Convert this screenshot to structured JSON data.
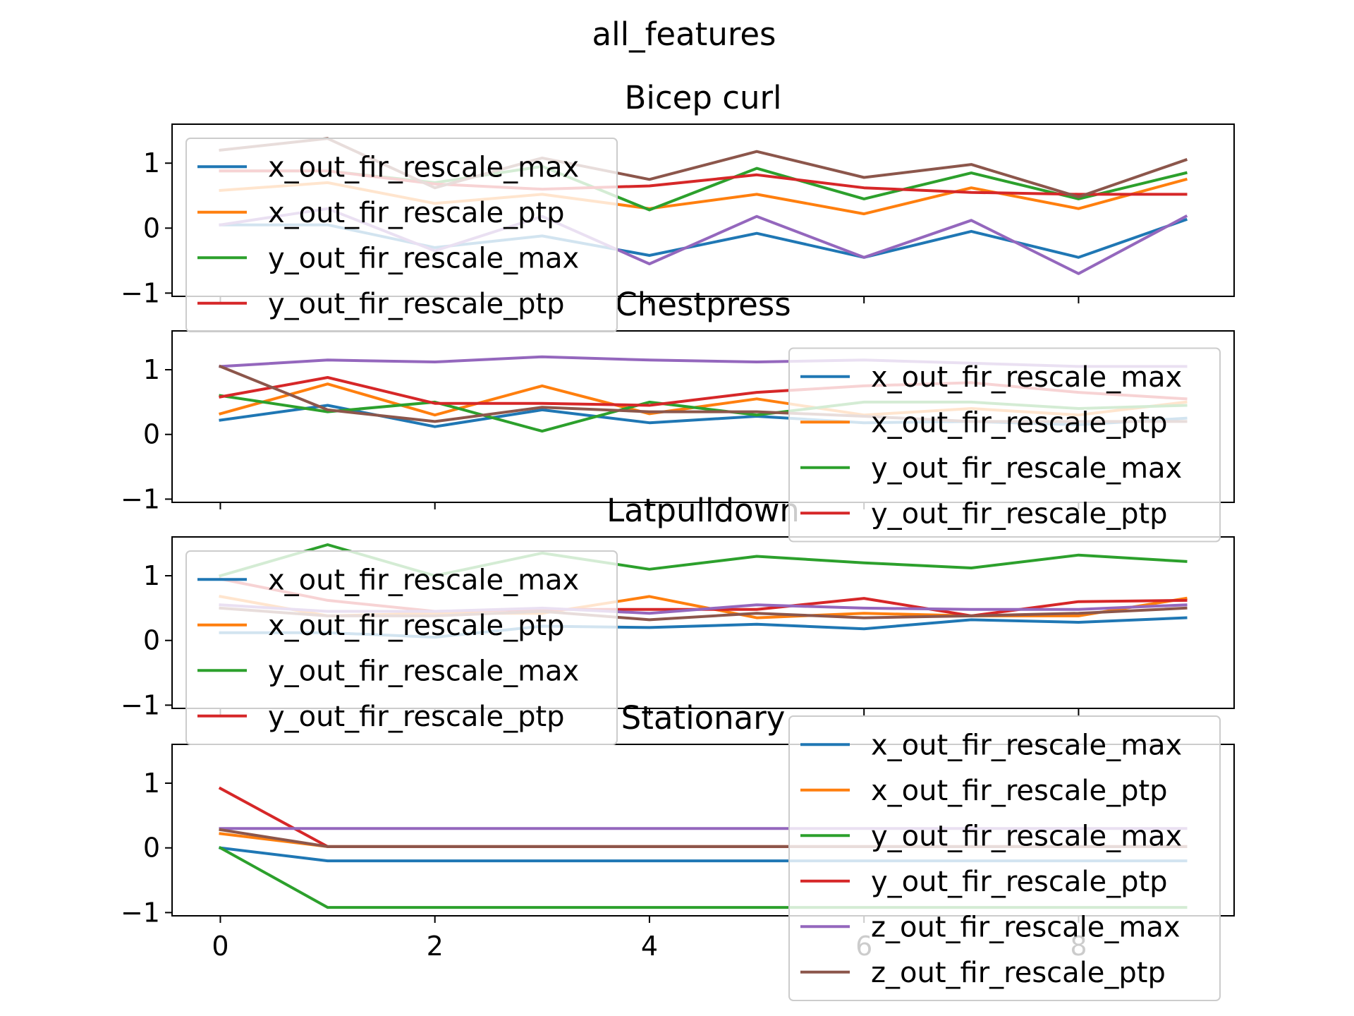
{
  "chart_data": {
    "type": "line",
    "suptitle": "all_features",
    "xticks": [
      0,
      2,
      4,
      6,
      8
    ],
    "xlim": [
      -0.45,
      9.45
    ],
    "ylim": [
      -1.05,
      1.6
    ],
    "yticks": [
      -1,
      0,
      1
    ],
    "x": [
      0,
      1,
      2,
      3,
      4,
      5,
      6,
      7,
      8,
      9
    ],
    "colors": {
      "x_out_fir_rescale_max": "#1f77b4",
      "x_out_fir_rescale_ptp": "#ff7f0e",
      "y_out_fir_rescale_max": "#2ca02c",
      "y_out_fir_rescale_ptp": "#d62728",
      "z_out_fir_rescale_max": "#9467bd",
      "z_out_fir_rescale_ptp": "#8c564b"
    },
    "panels": [
      {
        "title": "Bicep curl",
        "legend_loc": "upper-left",
        "legend_entries": [
          "x_out_fir_rescale_max",
          "x_out_fir_rescale_ptp",
          "y_out_fir_rescale_max",
          "y_out_fir_rescale_ptp"
        ],
        "series": [
          {
            "key": "x_out_fir_rescale_max",
            "values": [
              0.05,
              0.05,
              -0.3,
              -0.12,
              -0.42,
              -0.08,
              -0.45,
              -0.05,
              -0.45,
              0.13
            ]
          },
          {
            "key": "x_out_fir_rescale_ptp",
            "values": [
              0.58,
              0.7,
              0.38,
              0.52,
              0.3,
              0.52,
              0.22,
              0.62,
              0.3,
              0.75
            ]
          },
          {
            "key": "y_out_fir_rescale_max",
            "values": [
              0.88,
              0.88,
              0.7,
              0.95,
              0.28,
              0.92,
              0.45,
              0.85,
              0.45,
              0.85
            ]
          },
          {
            "key": "y_out_fir_rescale_ptp",
            "values": [
              0.88,
              0.88,
              0.68,
              0.6,
              0.65,
              0.82,
              0.62,
              0.55,
              0.52,
              0.52
            ]
          },
          {
            "key": "z_out_fir_rescale_max",
            "values": [
              0.05,
              0.3,
              -0.35,
              0.18,
              -0.55,
              0.18,
              -0.45,
              0.12,
              -0.7,
              0.18
            ]
          },
          {
            "key": "z_out_fir_rescale_ptp",
            "values": [
              1.2,
              1.38,
              0.62,
              1.08,
              0.75,
              1.18,
              0.78,
              0.98,
              0.48,
              1.05
            ]
          }
        ]
      },
      {
        "title": "Chestpress",
        "legend_loc": "center-right",
        "legend_entries": [
          "x_out_fir_rescale_max",
          "x_out_fir_rescale_ptp",
          "y_out_fir_rescale_max",
          "y_out_fir_rescale_ptp"
        ],
        "series": [
          {
            "key": "x_out_fir_rescale_max",
            "values": [
              0.22,
              0.45,
              0.12,
              0.38,
              0.18,
              0.28,
              0.18,
              0.2,
              0.15,
              0.25
            ]
          },
          {
            "key": "x_out_fir_rescale_ptp",
            "values": [
              0.32,
              0.78,
              0.3,
              0.75,
              0.32,
              0.55,
              0.3,
              0.4,
              0.3,
              0.5
            ]
          },
          {
            "key": "y_out_fir_rescale_max",
            "values": [
              0.6,
              0.35,
              0.5,
              0.05,
              0.5,
              0.3,
              0.5,
              0.5,
              0.4,
              0.45
            ]
          },
          {
            "key": "y_out_fir_rescale_ptp",
            "values": [
              0.58,
              0.88,
              0.48,
              0.48,
              0.45,
              0.65,
              0.75,
              0.8,
              0.65,
              0.55
            ]
          },
          {
            "key": "z_out_fir_rescale_max",
            "values": [
              1.05,
              1.15,
              1.12,
              1.2,
              1.15,
              1.12,
              1.15,
              1.1,
              1.05,
              1.05
            ]
          },
          {
            "key": "z_out_fir_rescale_ptp",
            "values": [
              1.05,
              0.38,
              0.2,
              0.42,
              0.35,
              0.35,
              0.28,
              0.2,
              0.2,
              0.2
            ]
          }
        ]
      },
      {
        "title": "Latpulldown",
        "legend_loc": "upper-left",
        "legend_entries": [
          "x_out_fir_rescale_max",
          "x_out_fir_rescale_ptp",
          "y_out_fir_rescale_max",
          "y_out_fir_rescale_ptp"
        ],
        "series": [
          {
            "key": "x_out_fir_rescale_max",
            "values": [
              0.12,
              0.12,
              0.05,
              0.22,
              0.2,
              0.25,
              0.18,
              0.32,
              0.28,
              0.35
            ]
          },
          {
            "key": "x_out_fir_rescale_ptp",
            "values": [
              0.68,
              0.38,
              0.42,
              0.42,
              0.68,
              0.35,
              0.42,
              0.38,
              0.38,
              0.65
            ]
          },
          {
            "key": "y_out_fir_rescale_max",
            "values": [
              1.0,
              1.48,
              1.0,
              1.35,
              1.1,
              1.3,
              1.2,
              1.12,
              1.32,
              1.22
            ]
          },
          {
            "key": "y_out_fir_rescale_ptp",
            "values": [
              0.95,
              0.62,
              0.45,
              0.48,
              0.48,
              0.48,
              0.65,
              0.38,
              0.6,
              0.62
            ]
          },
          {
            "key": "z_out_fir_rescale_max",
            "values": [
              0.55,
              0.45,
              0.45,
              0.5,
              0.42,
              0.55,
              0.5,
              0.48,
              0.48,
              0.55
            ]
          },
          {
            "key": "z_out_fir_rescale_ptp",
            "values": [
              0.5,
              0.38,
              0.38,
              0.45,
              0.32,
              0.42,
              0.35,
              0.38,
              0.42,
              0.5
            ]
          }
        ]
      },
      {
        "title": "Stationary",
        "legend_loc": "center-right",
        "legend_entries": [
          "x_out_fir_rescale_max",
          "x_out_fir_rescale_ptp",
          "y_out_fir_rescale_max",
          "y_out_fir_rescale_ptp",
          "z_out_fir_rescale_max",
          "z_out_fir_rescale_ptp"
        ],
        "series": [
          {
            "key": "x_out_fir_rescale_max",
            "values": [
              0.0,
              -0.2,
              -0.2,
              -0.2,
              -0.2,
              -0.2,
              -0.2,
              -0.2,
              -0.2,
              -0.2
            ]
          },
          {
            "key": "x_out_fir_rescale_ptp",
            "values": [
              0.22,
              0.02,
              0.02,
              0.02,
              0.02,
              0.02,
              0.02,
              0.02,
              0.02,
              0.02
            ]
          },
          {
            "key": "y_out_fir_rescale_max",
            "values": [
              0.0,
              -0.92,
              -0.92,
              -0.92,
              -0.92,
              -0.92,
              -0.92,
              -0.92,
              -0.92,
              -0.92
            ]
          },
          {
            "key": "y_out_fir_rescale_ptp",
            "values": [
              0.92,
              0.02,
              0.02,
              0.02,
              0.02,
              0.02,
              0.02,
              0.02,
              0.02,
              0.02
            ]
          },
          {
            "key": "z_out_fir_rescale_max",
            "values": [
              0.3,
              0.3,
              0.3,
              0.3,
              0.3,
              0.3,
              0.3,
              0.3,
              0.3,
              0.3
            ]
          },
          {
            "key": "z_out_fir_rescale_ptp",
            "values": [
              0.28,
              0.02,
              0.02,
              0.02,
              0.02,
              0.02,
              0.02,
              0.02,
              0.02,
              0.02
            ]
          }
        ]
      }
    ]
  }
}
